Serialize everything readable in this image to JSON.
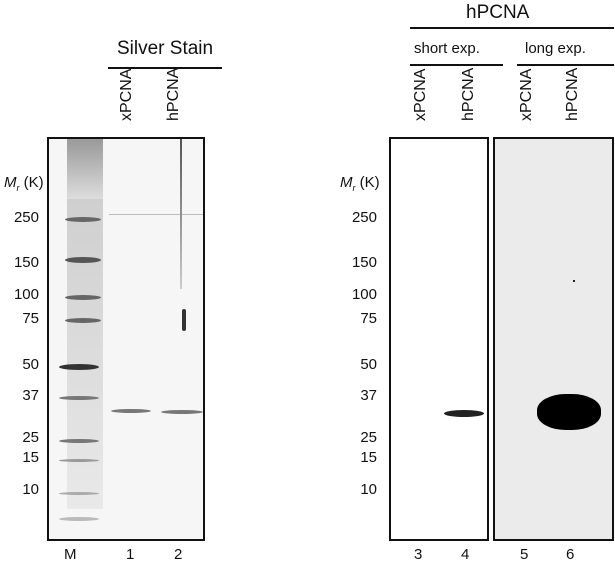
{
  "silver": {
    "title": "Silver Stain",
    "lanes": [
      "xPCNA",
      "hPCNA"
    ],
    "mr_label": "M",
    "mr_sub": "r",
    "mr_unit": "(K)",
    "markers": [
      "250",
      "150",
      "100",
      "75",
      "50",
      "37",
      "25",
      "15",
      "10"
    ],
    "lane_numbers": [
      "M",
      "1",
      "2"
    ]
  },
  "western": {
    "title": "hPCNA",
    "groups": [
      "short exp.",
      "long exp."
    ],
    "lanes": [
      "xPCNA",
      "hPCNA",
      "xPCNA",
      "hPCNA"
    ],
    "mr_label": "M",
    "mr_sub": "r",
    "mr_unit": "(K)",
    "markers": [
      "250",
      "150",
      "100",
      "75",
      "50",
      "37",
      "25",
      "15",
      "10"
    ],
    "lane_numbers": [
      "3",
      "4",
      "5",
      "6"
    ]
  }
}
